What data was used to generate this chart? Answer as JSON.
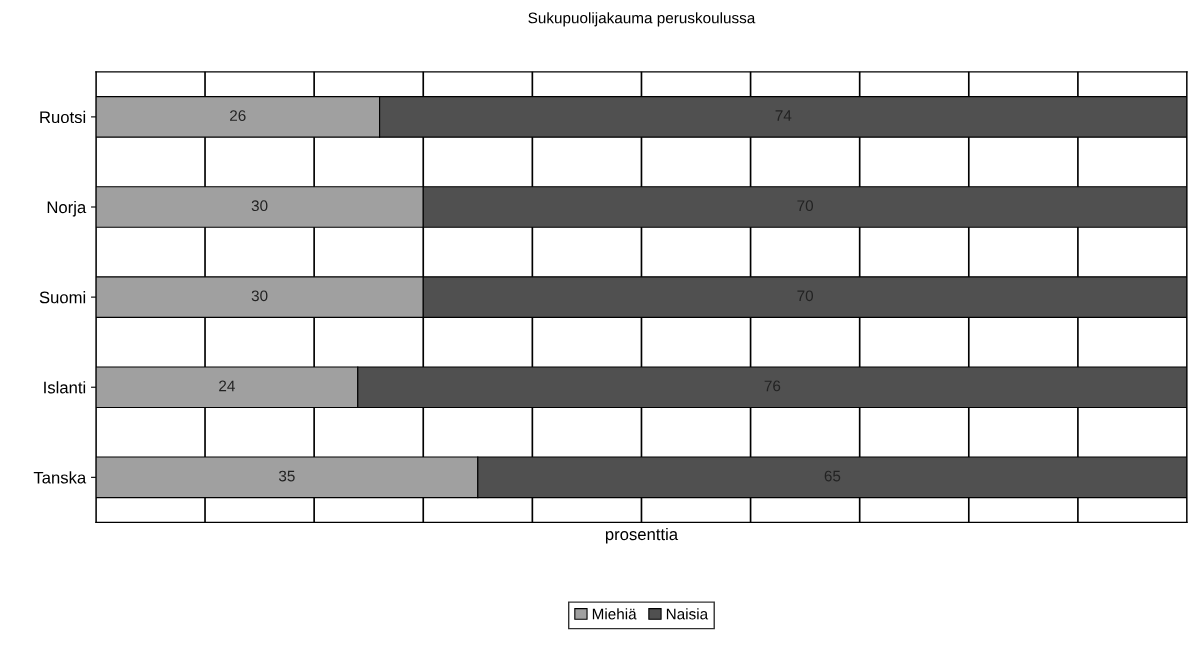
{
  "chart_data": {
    "type": "bar",
    "orientation": "horizontal",
    "stacked": true,
    "title": "Sukupuolijakauma peruskoulussa",
    "xlabel": "prosenttia",
    "categories": [
      "Ruotsi",
      "Norja",
      "Suomi",
      "Islanti",
      "Tanska"
    ],
    "series": [
      {
        "name": "Miehiä",
        "color": "#a0a0a0",
        "values": [
          26,
          30,
          30,
          24,
          35
        ]
      },
      {
        "name": "Naisia",
        "color": "#505050",
        "values": [
          74,
          70,
          70,
          76,
          65
        ]
      }
    ],
    "xlim": [
      0,
      100
    ],
    "xticks": [
      {
        "value": 0,
        "label": null
      },
      {
        "value": 10,
        "label": null
      },
      {
        "value": 20,
        "label": null
      },
      {
        "value": 30,
        "label": null
      },
      {
        "value": 40,
        "label": null
      },
      {
        "value": 50,
        "label": null
      },
      {
        "value": 60,
        "label": null
      },
      {
        "value": 70,
        "label": null
      },
      {
        "value": 80,
        "label": null
      },
      {
        "value": 90,
        "label": null
      },
      {
        "value": 100,
        "label": null
      }
    ],
    "tick_labels": "y",
    "grid": "x",
    "legend": "bottom",
    "data_labels": true
  }
}
